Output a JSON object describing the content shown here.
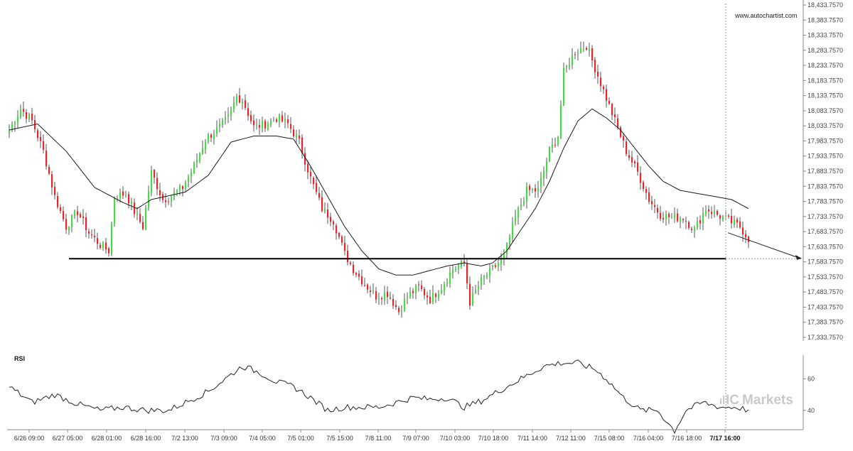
{
  "watermark": "www.autochartist.com",
  "brand": {
    "prefix": "IC",
    "name": "Markets"
  },
  "colors": {
    "up": "#4cd64c",
    "down": "#e0262f",
    "wick": "#555555",
    "ma": "#1a1a1a",
    "level": "#000000",
    "rsi": "#222222",
    "grid_marker": "#999999"
  },
  "chart_data": {
    "type": "candlestick",
    "title": "",
    "ylim": [
      17333.757,
      18433.757
    ],
    "yticks": [
      18433.757,
      18383.757,
      18333.757,
      18283.757,
      18233.757,
      18183.757,
      18133.757,
      18083.757,
      18033.757,
      17983.757,
      17933.757,
      17883.757,
      17833.757,
      17783.757,
      17733.757,
      17683.757,
      17633.757,
      17583.757,
      17533.757,
      17483.757,
      17433.757,
      17383.757,
      17333.757
    ],
    "ytick_labels": [
      "18,433.7570",
      "18,383.7570",
      "18,333.7570",
      "18,283.7570",
      "18,233.7570",
      "18,183.7570",
      "18,133.7570",
      "18,083.7570",
      "18,033.7570",
      "17,983.7570",
      "17,933.7570",
      "17,883.7570",
      "17,833.7570",
      "17,783.7570",
      "17,733.7570",
      "17,683.7570",
      "17,633.7570",
      "17,583.7570",
      "17,533.7570",
      "17,483.7570",
      "17,433.7570",
      "17,383.7570",
      "17,333.7570"
    ],
    "xtick_labels": [
      "6/26 09:00",
      "6/27 05:00",
      "6/28 01:00",
      "6/28 16:00",
      "7/2 13:00",
      "7/3 09:00",
      "7/4 05:00",
      "7/5 01:00",
      "7/5 15:00",
      "7/8 11:00",
      "7/9 07:00",
      "7/10 03:00",
      "7/10 18:00",
      "7/11 14:00",
      "7/12 11:00",
      "7/15 08:00",
      "7/16 04:00",
      "7/16 18:00",
      "7/17 16:00"
    ],
    "current_label": "7/17 16:00",
    "support_level": 17594,
    "projection": {
      "from": 17680,
      "to": 17595
    },
    "close_anchors": [
      [
        0,
        18020
      ],
      [
        4,
        18090
      ],
      [
        8,
        18050
      ],
      [
        12,
        17950
      ],
      [
        16,
        17800
      ],
      [
        20,
        17700
      ],
      [
        24,
        17750
      ],
      [
        28,
        17680
      ],
      [
        32,
        17640
      ],
      [
        35,
        17620
      ],
      [
        37,
        17800
      ],
      [
        41,
        17810
      ],
      [
        44,
        17750
      ],
      [
        47,
        17700
      ],
      [
        50,
        17880
      ],
      [
        54,
        17790
      ],
      [
        57,
        17800
      ],
      [
        61,
        17830
      ],
      [
        65,
        17900
      ],
      [
        69,
        17990
      ],
      [
        73,
        18020
      ],
      [
        77,
        18060
      ],
      [
        80,
        18130
      ],
      [
        82,
        18120
      ],
      [
        86,
        18030
      ],
      [
        90,
        18040
      ],
      [
        94,
        18060
      ],
      [
        98,
        18040
      ],
      [
        102,
        17980
      ],
      [
        106,
        17860
      ],
      [
        110,
        17760
      ],
      [
        114,
        17720
      ],
      [
        118,
        17610
      ],
      [
        121,
        17560
      ],
      [
        125,
        17510
      ],
      [
        129,
        17470
      ],
      [
        133,
        17480
      ],
      [
        137,
        17420
      ],
      [
        140,
        17470
      ],
      [
        144,
        17500
      ],
      [
        148,
        17460
      ],
      [
        152,
        17500
      ],
      [
        156,
        17560
      ],
      [
        160,
        17580
      ],
      [
        162,
        17450
      ],
      [
        166,
        17520
      ],
      [
        170,
        17560
      ],
      [
        174,
        17600
      ],
      [
        178,
        17730
      ],
      [
        182,
        17820
      ],
      [
        186,
        17820
      ],
      [
        190,
        17950
      ],
      [
        193,
        18000
      ],
      [
        195,
        18210
      ],
      [
        199,
        18280
      ],
      [
        203,
        18300
      ],
      [
        205,
        18250
      ],
      [
        209,
        18150
      ],
      [
        213,
        18050
      ],
      [
        217,
        17950
      ],
      [
        221,
        17880
      ],
      [
        225,
        17790
      ],
      [
        229,
        17740
      ],
      [
        233,
        17730
      ],
      [
        237,
        17730
      ],
      [
        241,
        17690
      ],
      [
        245,
        17760
      ],
      [
        249,
        17740
      ],
      [
        253,
        17720
      ],
      [
        257,
        17700
      ],
      [
        260,
        17660
      ]
    ],
    "ma_anchors": [
      [
        0,
        18020
      ],
      [
        10,
        18040
      ],
      [
        20,
        17950
      ],
      [
        30,
        17830
      ],
      [
        40,
        17780
      ],
      [
        45,
        17760
      ],
      [
        50,
        17790
      ],
      [
        55,
        17800
      ],
      [
        62,
        17815
      ],
      [
        70,
        17870
      ],
      [
        78,
        17980
      ],
      [
        86,
        18000
      ],
      [
        94,
        18000
      ],
      [
        100,
        17990
      ],
      [
        106,
        17900
      ],
      [
        112,
        17800
      ],
      [
        118,
        17700
      ],
      [
        124,
        17620
      ],
      [
        130,
        17560
      ],
      [
        136,
        17540
      ],
      [
        142,
        17540
      ],
      [
        148,
        17555
      ],
      [
        154,
        17570
      ],
      [
        160,
        17580
      ],
      [
        166,
        17570
      ],
      [
        170,
        17580
      ],
      [
        175,
        17620
      ],
      [
        180,
        17690
      ],
      [
        185,
        17760
      ],
      [
        190,
        17850
      ],
      [
        195,
        17960
      ],
      [
        200,
        18050
      ],
      [
        205,
        18090
      ],
      [
        210,
        18060
      ],
      [
        215,
        18020
      ],
      [
        220,
        17960
      ],
      [
        225,
        17900
      ],
      [
        230,
        17850
      ],
      [
        236,
        17820
      ],
      [
        242,
        17810
      ],
      [
        248,
        17800
      ],
      [
        254,
        17790
      ],
      [
        260,
        17760
      ]
    ],
    "rsi": {
      "label": "RSI",
      "ylim": [
        30,
        75
      ],
      "yticks": [
        60,
        40
      ],
      "anchors": [
        [
          0,
          55
        ],
        [
          8,
          45
        ],
        [
          16,
          50
        ],
        [
          24,
          44
        ],
        [
          32,
          40
        ],
        [
          40,
          42
        ],
        [
          48,
          40
        ],
        [
          56,
          40
        ],
        [
          62,
          45
        ],
        [
          70,
          52
        ],
        [
          76,
          60
        ],
        [
          82,
          68
        ],
        [
          88,
          64
        ],
        [
          94,
          58
        ],
        [
          100,
          55
        ],
        [
          106,
          48
        ],
        [
          112,
          40
        ],
        [
          118,
          42
        ],
        [
          124,
          42
        ],
        [
          130,
          42
        ],
        [
          136,
          45
        ],
        [
          142,
          48
        ],
        [
          148,
          47
        ],
        [
          154,
          48
        ],
        [
          160,
          42
        ],
        [
          166,
          46
        ],
        [
          170,
          50
        ],
        [
          176,
          56
        ],
        [
          182,
          62
        ],
        [
          188,
          68
        ],
        [
          194,
          70
        ],
        [
          200,
          70
        ],
        [
          206,
          66
        ],
        [
          210,
          60
        ],
        [
          216,
          48
        ],
        [
          222,
          40
        ],
        [
          228,
          40
        ],
        [
          234,
          27
        ],
        [
          238,
          40
        ],
        [
          244,
          45
        ],
        [
          250,
          42
        ],
        [
          256,
          42
        ],
        [
          260,
          40
        ]
      ]
    },
    "n_candles": 261,
    "legend": "none",
    "grid": false
  }
}
